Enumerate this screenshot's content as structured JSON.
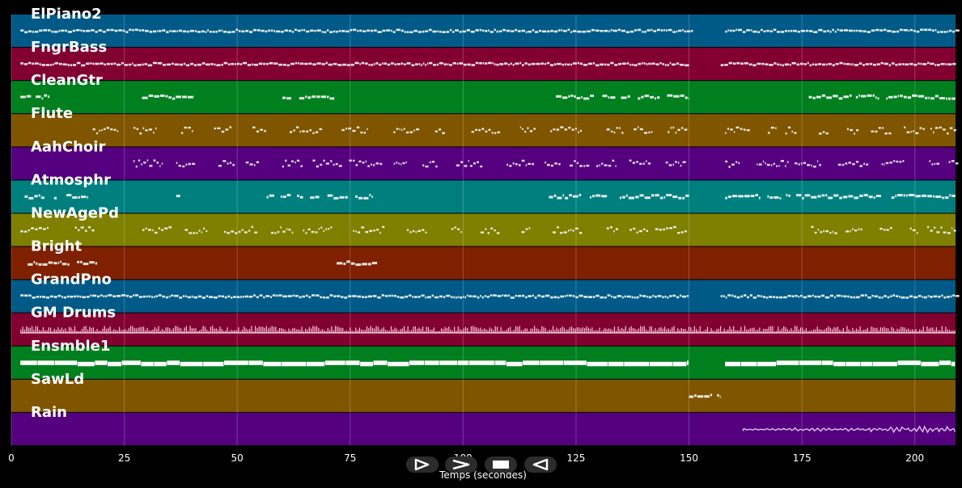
{
  "chart_data": {
    "type": "piano-roll",
    "title": "",
    "xlabel": "Temps (secondes)",
    "ylabel": "",
    "xlim": [
      0,
      209
    ],
    "x_ticks": [
      0,
      25,
      50,
      75,
      100,
      125,
      150,
      175,
      200
    ],
    "grid": true,
    "tracks": [
      {
        "name": "ElPiano2",
        "color": "#005a87",
        "style": "dense",
        "segments": [
          [
            2,
            150.5
          ],
          [
            158,
            209
          ]
        ]
      },
      {
        "name": "FngrBass",
        "color": "#820030",
        "style": "dense",
        "segments": [
          [
            2,
            150
          ],
          [
            157,
            209
          ]
        ]
      },
      {
        "name": "CleanGtr",
        "color": "#007f1f",
        "style": "clusters",
        "segments": [
          [
            2,
            8.5
          ],
          [
            28,
            40.5
          ],
          [
            60,
            71.5
          ],
          [
            119,
            150
          ],
          [
            176.5,
            209
          ]
        ]
      },
      {
        "name": "Flute",
        "color": "#7f5500",
        "style": "sparse",
        "segments": [
          [
            18,
            150
          ],
          [
            158,
            209
          ]
        ]
      },
      {
        "name": "AahChoir",
        "color": "#55007f",
        "style": "sparse",
        "segments": [
          [
            27,
            150
          ],
          [
            158,
            209
          ]
        ]
      },
      {
        "name": "Atmosphr",
        "color": "#007f7f",
        "style": "clusters",
        "segments": [
          [
            2,
            17
          ],
          [
            36.5,
            37.5
          ],
          [
            56.5,
            80
          ],
          [
            119,
            150
          ],
          [
            158,
            209
          ]
        ]
      },
      {
        "name": "NewAgePd",
        "color": "#7f7f00",
        "style": "sparse",
        "segments": [
          [
            2,
            19
          ],
          [
            29,
            150
          ],
          [
            177,
            209
          ]
        ]
      },
      {
        "name": "Bright",
        "color": "#7f2000",
        "style": "clusters",
        "segments": [
          [
            2,
            19
          ],
          [
            72,
            81
          ]
        ]
      },
      {
        "name": "GrandPno",
        "color": "#005a87",
        "style": "dense",
        "segments": [
          [
            2,
            150
          ],
          [
            157,
            209
          ]
        ]
      },
      {
        "name": "GM Drums",
        "color": "#820030",
        "style": "drums",
        "segments": [
          [
            2,
            209
          ]
        ]
      },
      {
        "name": "Ensmble1",
        "color": "#007f1f",
        "style": "pad",
        "segments": [
          [
            2,
            150
          ],
          [
            158,
            209
          ]
        ]
      },
      {
        "name": "SawLd",
        "color": "#7f5500",
        "style": "clusters",
        "segments": [
          [
            150,
            157
          ]
        ]
      },
      {
        "name": "Rain",
        "color": "#55007f",
        "style": "wave",
        "segments": [
          [
            162,
            209
          ]
        ]
      }
    ]
  },
  "transport": {
    "play_icon": "play-icon",
    "forward_icon": "forward-icon",
    "stop_icon": "stop-icon",
    "rewind_icon": "rewind-icon"
  }
}
